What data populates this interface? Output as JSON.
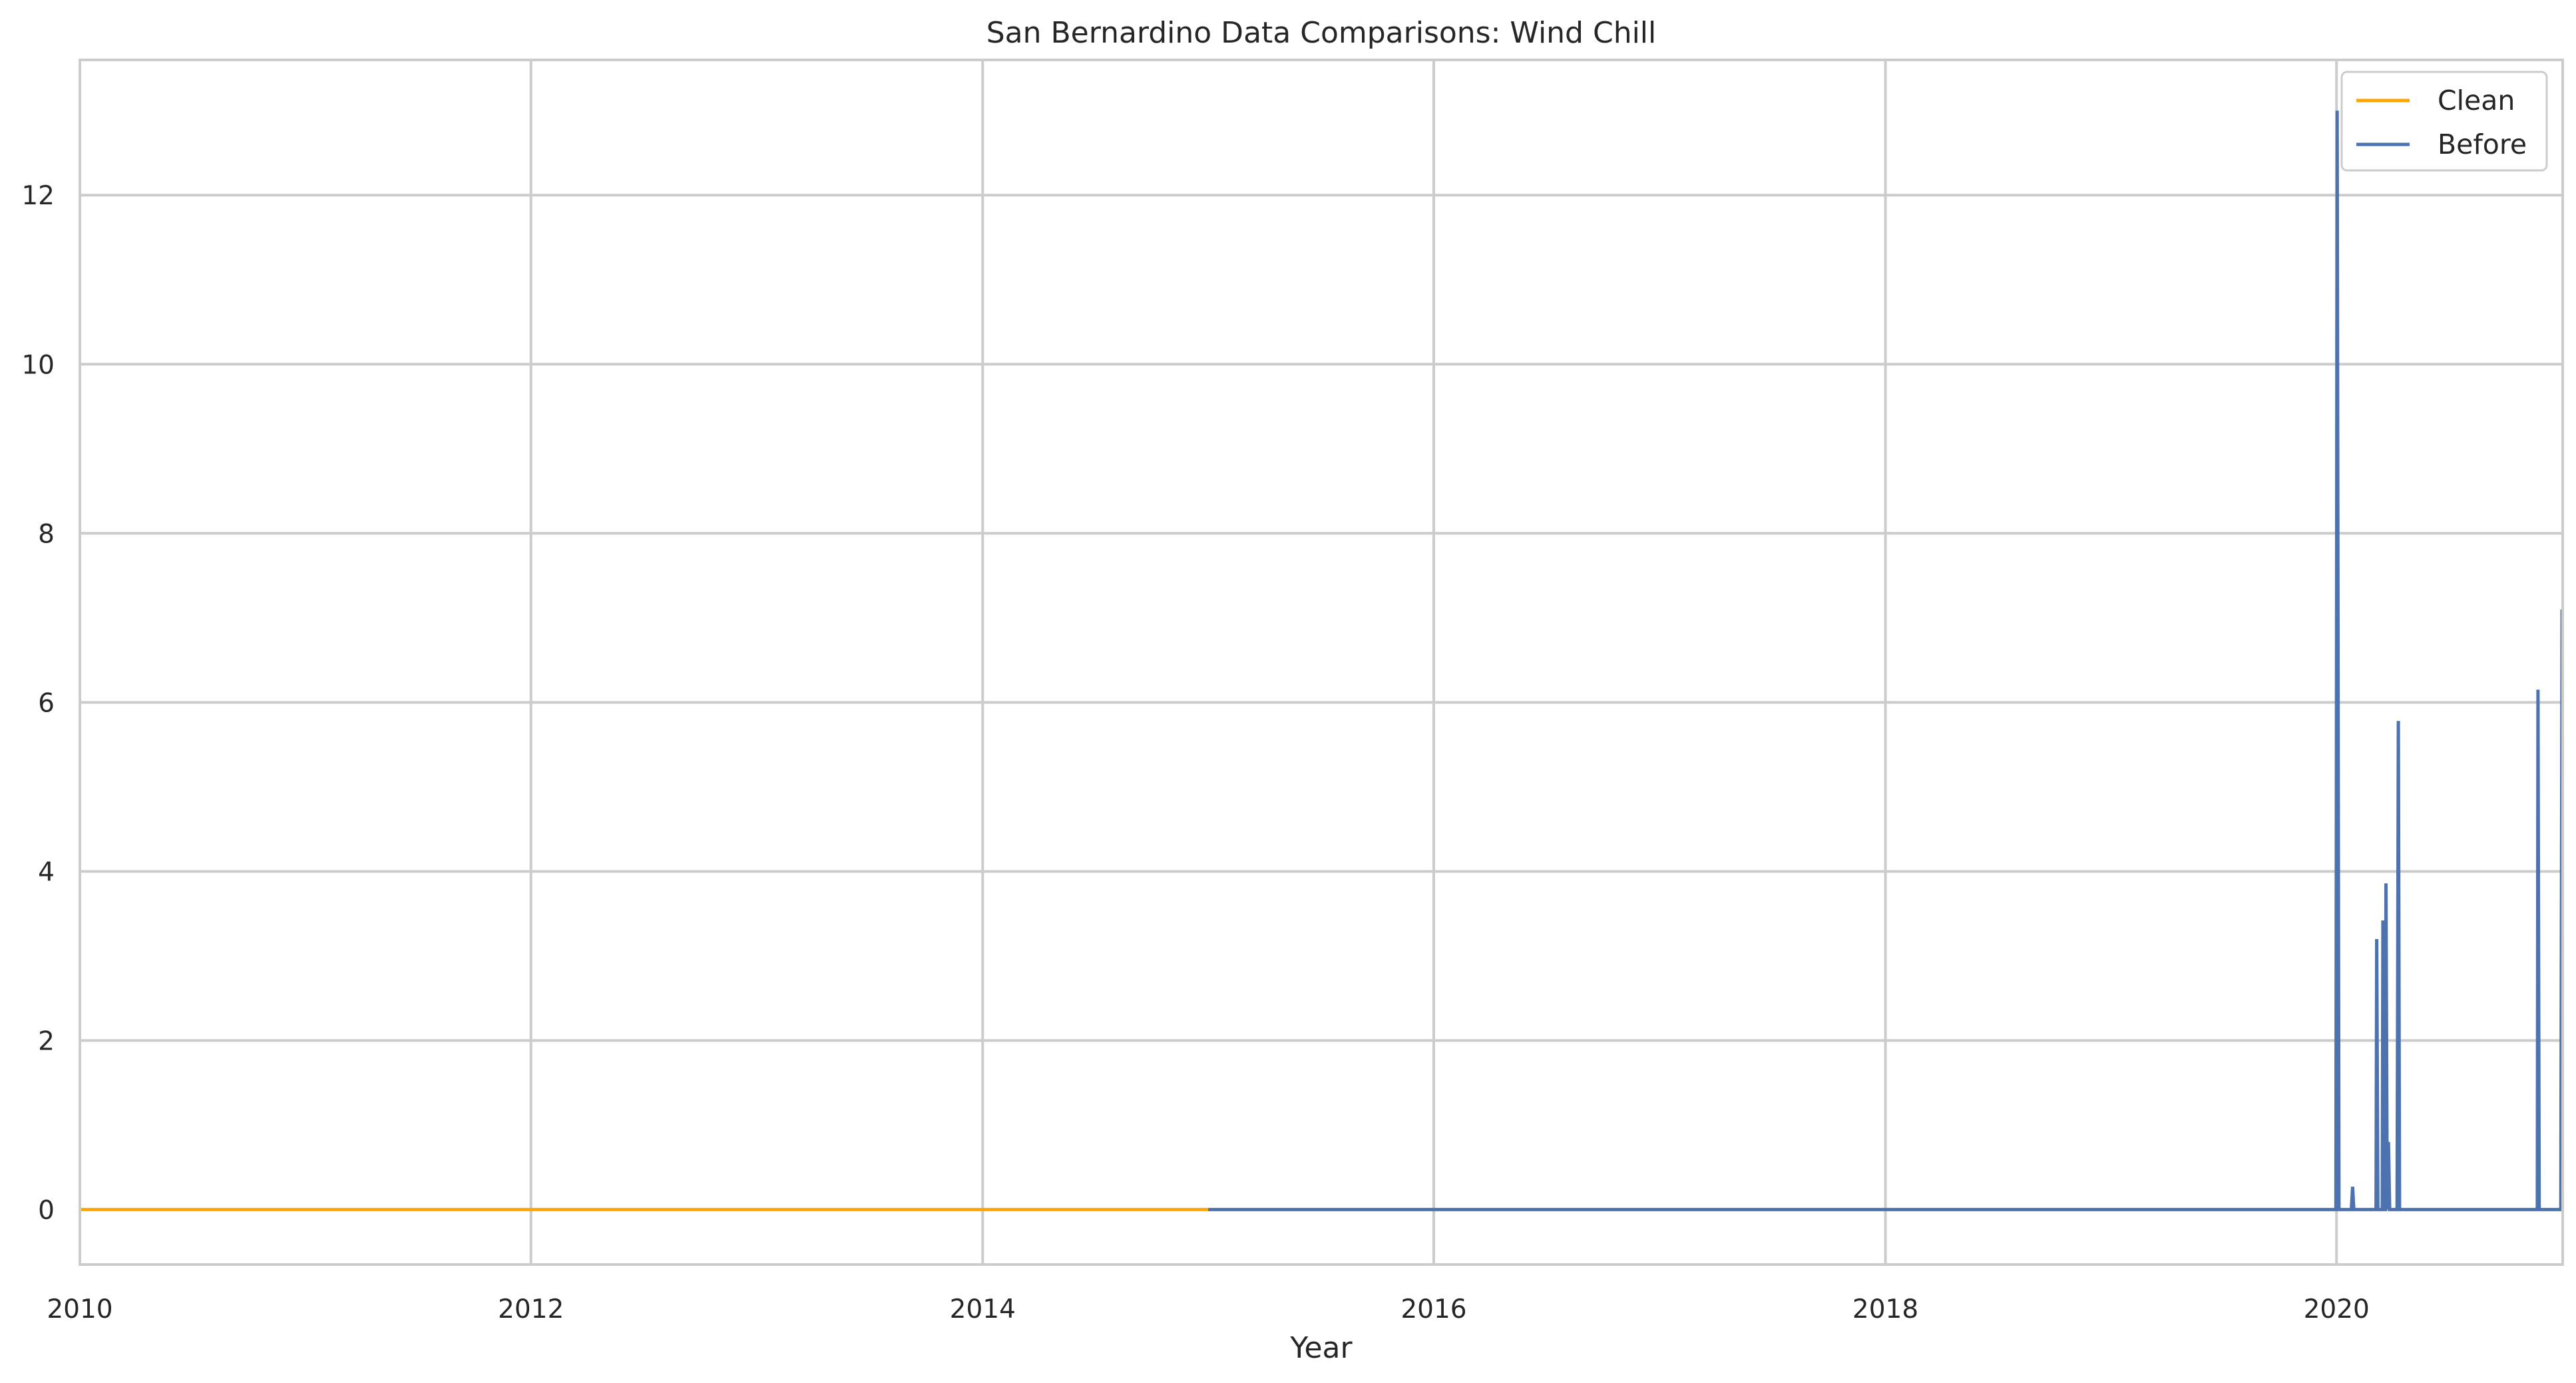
{
  "chart_data": {
    "type": "line",
    "title": "San Bernardino Data Comparisons: Wind Chill",
    "xlabel": "Year",
    "ylabel": "",
    "x_axis_type": "date",
    "xlim": [
      "2010-01-01",
      "2021-01-01"
    ],
    "ylim": [
      -0.65,
      13.6
    ],
    "x_ticks": [
      "2010",
      "2012",
      "2014",
      "2016",
      "2018",
      "2020"
    ],
    "y_ticks": [
      0,
      2,
      4,
      6,
      8,
      10,
      12
    ],
    "grid": true,
    "legend_position": "top-right",
    "series": [
      {
        "name": "Clean",
        "color": "#ffa500",
        "points": [
          {
            "x": "2010-01-01",
            "y": 0
          },
          {
            "x": "2015-01-01",
            "y": 0
          }
        ]
      },
      {
        "name": "Before",
        "color": "#4c72b0",
        "points": [
          {
            "x": "2015-01-01",
            "y": 0
          },
          {
            "x": "2019-12-31",
            "y": 0
          },
          {
            "x": "2020-01-02",
            "y": 13.0
          },
          {
            "x": "2020-01-05",
            "y": 0
          },
          {
            "x": "2020-01-25",
            "y": 0
          },
          {
            "x": "2020-01-27",
            "y": 0.27
          },
          {
            "x": "2020-01-29",
            "y": 0
          },
          {
            "x": "2020-03-05",
            "y": 0
          },
          {
            "x": "2020-03-06",
            "y": 3.2
          },
          {
            "x": "2020-03-08",
            "y": 0
          },
          {
            "x": "2020-03-15",
            "y": 0
          },
          {
            "x": "2020-03-16",
            "y": 3.42
          },
          {
            "x": "2020-03-17",
            "y": 0
          },
          {
            "x": "2020-03-20",
            "y": 0
          },
          {
            "x": "2020-03-21",
            "y": 3.86
          },
          {
            "x": "2020-03-23",
            "y": 0
          },
          {
            "x": "2020-03-25",
            "y": 0.8
          },
          {
            "x": "2020-03-27",
            "y": 0
          },
          {
            "x": "2020-04-08",
            "y": 0
          },
          {
            "x": "2020-04-10",
            "y": 5.78
          },
          {
            "x": "2020-04-12",
            "y": 0
          },
          {
            "x": "2020-11-21",
            "y": 0
          },
          {
            "x": "2020-11-22",
            "y": 6.15
          },
          {
            "x": "2020-11-24",
            "y": 0
          },
          {
            "x": "2020-12-29",
            "y": 0
          },
          {
            "x": "2020-12-31",
            "y": 7.1
          }
        ]
      }
    ]
  }
}
